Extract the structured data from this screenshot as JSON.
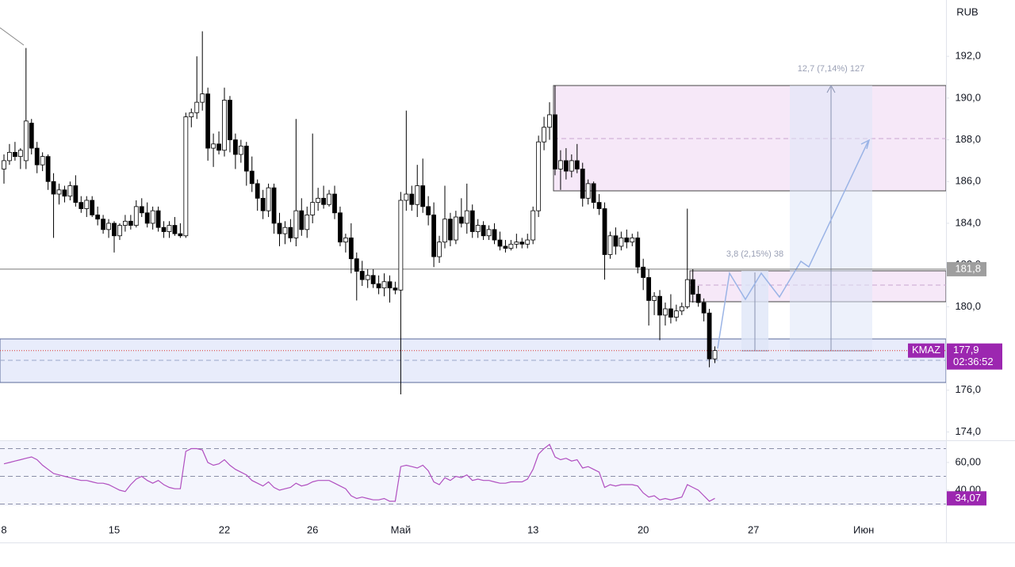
{
  "chart_data": [
    {
      "type": "candlestick",
      "ticker": "KMAZ",
      "currency": "RUB",
      "xlim": [
        -0.72,
        170.94
      ],
      "ylim": [
        173.6,
        194.7
      ],
      "yticks": [
        {
          "value": 174,
          "label": "174,0"
        },
        {
          "value": 176,
          "label": "176,0"
        },
        {
          "value": 178,
          "label": "178,0"
        },
        {
          "value": 180,
          "label": "180,0"
        },
        {
          "value": 182,
          "label": "182,0"
        },
        {
          "value": 184,
          "label": "184,0"
        },
        {
          "value": 186,
          "label": "186,0"
        },
        {
          "value": 188,
          "label": "188,0"
        },
        {
          "value": 190,
          "label": "190,0"
        },
        {
          "value": 192,
          "label": "192,0"
        }
      ],
      "xticks": [
        {
          "value": 0,
          "label": "8"
        },
        {
          "value": 20,
          "label": "15"
        },
        {
          "value": 40,
          "label": "22"
        },
        {
          "value": 56,
          "label": "26"
        },
        {
          "value": 72,
          "label": "Май"
        },
        {
          "value": 96,
          "label": "13"
        },
        {
          "value": 116,
          "label": "20"
        },
        {
          "value": 136,
          "label": "27"
        },
        {
          "value": 156,
          "label": "Июн"
        }
      ],
      "hline": {
        "value": 181.8,
        "label": "181,8"
      },
      "last_price": {
        "value": 177.9,
        "label": "177,9"
      },
      "countdown": "02:36:52",
      "measure_short": "3,8 (2,15%) 38",
      "measure_long": "12,7 (7,14%) 127",
      "up_color": "#ffffff",
      "down_color": "#000000",
      "accent_color": "#9c27b0",
      "ohlc": [
        [
          186.6,
          187.3,
          185.9,
          187.0
        ],
        [
          187.0,
          187.8,
          186.8,
          187.4
        ],
        [
          187.4,
          187.9,
          187.0,
          187.2
        ],
        [
          187.2,
          187.6,
          186.6,
          187.5
        ],
        [
          187.0,
          192.4,
          186.6,
          188.9
        ],
        [
          188.8,
          189.0,
          187.3,
          187.6
        ],
        [
          187.6,
          187.9,
          186.4,
          186.8
        ],
        [
          186.8,
          187.4,
          186.5,
          187.2
        ],
        [
          187.2,
          187.3,
          185.6,
          186.0
        ],
        [
          186.0,
          186.4,
          183.3,
          185.4
        ],
        [
          185.4,
          185.9,
          184.9,
          185.6
        ],
        [
          185.6,
          185.8,
          185.0,
          185.3
        ],
        [
          185.3,
          186.0,
          185.1,
          185.8
        ],
        [
          185.8,
          186.3,
          184.8,
          185.0
        ],
        [
          185.0,
          185.3,
          184.5,
          184.7
        ],
        [
          184.7,
          185.3,
          184.3,
          185.1
        ],
        [
          185.1,
          185.3,
          184.3,
          184.4
        ],
        [
          184.4,
          184.8,
          183.9,
          184.2
        ],
        [
          184.2,
          184.4,
          183.5,
          183.7
        ],
        [
          183.7,
          184.2,
          183.3,
          184.0
        ],
        [
          184.0,
          184.1,
          182.6,
          183.4
        ],
        [
          183.4,
          184.0,
          183.2,
          183.9
        ],
        [
          183.9,
          184.4,
          183.6,
          184.1
        ],
        [
          184.1,
          184.4,
          183.7,
          183.9
        ],
        [
          183.9,
          185.1,
          183.8,
          184.8
        ],
        [
          184.8,
          185.2,
          184.3,
          184.5
        ],
        [
          184.5,
          185.0,
          183.8,
          184.0
        ],
        [
          184.0,
          184.8,
          183.7,
          184.6
        ],
        [
          184.6,
          184.8,
          183.6,
          183.8
        ],
        [
          183.8,
          184.1,
          183.3,
          183.6
        ],
        [
          183.6,
          184.1,
          183.3,
          183.9
        ],
        [
          183.9,
          184.3,
          183.4,
          183.5
        ],
        [
          183.5,
          184.0,
          183.3,
          183.4
        ],
        [
          183.4,
          189.3,
          183.3,
          189.1
        ],
        [
          189.1,
          189.5,
          188.6,
          189.3
        ],
        [
          189.3,
          192.0,
          189.0,
          189.8
        ],
        [
          189.8,
          193.2,
          189.4,
          190.2
        ],
        [
          190.2,
          190.5,
          187.0,
          187.6
        ],
        [
          187.6,
          188.3,
          186.7,
          187.8
        ],
        [
          187.8,
          188.4,
          187.3,
          187.5
        ],
        [
          187.5,
          190.5,
          187.2,
          189.9
        ],
        [
          189.9,
          190.1,
          187.4,
          188.0
        ],
        [
          188.0,
          188.3,
          186.6,
          187.3
        ],
        [
          187.3,
          188.0,
          186.9,
          187.7
        ],
        [
          187.7,
          187.9,
          185.8,
          186.5
        ],
        [
          186.5,
          187.2,
          185.5,
          185.9
        ],
        [
          185.9,
          186.1,
          184.6,
          185.2
        ],
        [
          185.2,
          185.6,
          184.2,
          184.6
        ],
        [
          184.6,
          185.9,
          184.3,
          185.7
        ],
        [
          185.7,
          185.9,
          183.5,
          184.0
        ],
        [
          184.0,
          184.5,
          182.9,
          183.5
        ],
        [
          183.5,
          184.1,
          183.0,
          183.8
        ],
        [
          183.8,
          184.2,
          183.1,
          183.3
        ],
        [
          183.3,
          189.0,
          182.9,
          184.6
        ],
        [
          184.6,
          185.2,
          183.4,
          183.7
        ],
        [
          183.7,
          184.8,
          183.3,
          184.4
        ],
        [
          184.4,
          188.3,
          184.0,
          185.0
        ],
        [
          185.0,
          185.7,
          184.6,
          185.2
        ],
        [
          185.2,
          185.8,
          184.7,
          184.9
        ],
        [
          184.9,
          185.6,
          184.8,
          185.4
        ],
        [
          185.4,
          185.8,
          184.2,
          184.5
        ],
        [
          184.5,
          184.8,
          182.9,
          183.1
        ],
        [
          183.1,
          183.5,
          182.6,
          183.3
        ],
        [
          183.3,
          184.0,
          181.6,
          182.3
        ],
        [
          182.3,
          182.6,
          180.3,
          181.7
        ],
        [
          181.7,
          182.2,
          181.0,
          181.3
        ],
        [
          181.3,
          181.8,
          180.9,
          181.5
        ],
        [
          181.5,
          181.8,
          180.9,
          181.1
        ],
        [
          181.1,
          181.5,
          180.6,
          180.9
        ],
        [
          180.9,
          181.6,
          180.5,
          181.2
        ],
        [
          181.2,
          181.5,
          180.2,
          180.9
        ],
        [
          180.9,
          181.2,
          180.6,
          180.8
        ],
        [
          180.8,
          185.5,
          175.8,
          185.1
        ],
        [
          185.1,
          189.4,
          184.6,
          185.4
        ],
        [
          185.4,
          185.8,
          184.6,
          184.9
        ],
        [
          184.9,
          186.8,
          184.3,
          185.8
        ],
        [
          185.8,
          187.1,
          184.5,
          184.8
        ],
        [
          184.8,
          185.3,
          183.9,
          184.4
        ],
        [
          184.4,
          185.0,
          181.9,
          182.4
        ],
        [
          182.4,
          183.4,
          182.1,
          183.1
        ],
        [
          183.1,
          185.8,
          182.8,
          184.2
        ],
        [
          184.2,
          184.5,
          182.9,
          183.2
        ],
        [
          183.2,
          184.6,
          183.0,
          184.3
        ],
        [
          184.3,
          185.2,
          183.8,
          184.0
        ],
        [
          184.0,
          185.9,
          183.5,
          184.6
        ],
        [
          184.6,
          184.9,
          183.3,
          183.6
        ],
        [
          183.6,
          184.2,
          183.3,
          183.9
        ],
        [
          183.9,
          184.1,
          183.2,
          183.4
        ],
        [
          183.4,
          183.9,
          183.2,
          183.7
        ],
        [
          183.7,
          184.0,
          183.0,
          183.2
        ],
        [
          183.2,
          183.6,
          182.7,
          182.9
        ],
        [
          182.9,
          183.2,
          182.6,
          182.8
        ],
        [
          182.8,
          183.2,
          182.7,
          183.0
        ],
        [
          183.0,
          183.5,
          182.8,
          183.1
        ],
        [
          183.1,
          183.3,
          182.8,
          183.0
        ],
        [
          183.0,
          183.5,
          182.8,
          183.2
        ],
        [
          183.2,
          184.8,
          183.0,
          184.6
        ],
        [
          184.6,
          188.2,
          184.3,
          187.9
        ],
        [
          187.9,
          189.1,
          187.5,
          188.6
        ],
        [
          188.6,
          189.8,
          188.0,
          189.2
        ],
        [
          189.2,
          190.6,
          186.3,
          186.6
        ],
        [
          186.6,
          187.5,
          185.6,
          187.0
        ],
        [
          187.0,
          187.6,
          186.1,
          186.5
        ],
        [
          186.5,
          187.3,
          186.2,
          187.0
        ],
        [
          187.0,
          187.8,
          186.4,
          186.6
        ],
        [
          186.6,
          186.9,
          184.8,
          185.2
        ],
        [
          185.2,
          186.1,
          184.9,
          185.9
        ],
        [
          185.9,
          186.0,
          184.7,
          185.0
        ],
        [
          185.0,
          185.4,
          184.4,
          184.7
        ],
        [
          184.7,
          185.0,
          181.3,
          182.5
        ],
        [
          182.5,
          183.6,
          182.3,
          183.4
        ],
        [
          183.4,
          183.8,
          182.5,
          182.9
        ],
        [
          182.9,
          183.6,
          182.7,
          183.3
        ],
        [
          183.3,
          183.7,
          182.8,
          183.1
        ],
        [
          183.1,
          183.5,
          182.9,
          183.3
        ],
        [
          183.3,
          183.6,
          181.6,
          181.9
        ],
        [
          181.9,
          182.3,
          180.8,
          181.4
        ],
        [
          181.4,
          181.8,
          179.1,
          180.3
        ],
        [
          180.3,
          180.7,
          179.6,
          180.5
        ],
        [
          180.5,
          180.8,
          178.4,
          179.6
        ],
        [
          179.6,
          180.2,
          179.1,
          179.9
        ],
        [
          179.9,
          180.6,
          179.2,
          179.5
        ],
        [
          179.5,
          180.1,
          179.3,
          179.8
        ],
        [
          179.8,
          180.2,
          179.6,
          180.0
        ],
        [
          180.0,
          184.7,
          179.9,
          181.3
        ],
        [
          181.3,
          181.8,
          180.2,
          180.6
        ],
        [
          180.6,
          181.0,
          180.0,
          180.2
        ],
        [
          180.2,
          180.4,
          179.3,
          179.7
        ],
        [
          179.7,
          179.9,
          177.1,
          177.5
        ],
        [
          177.5,
          178.1,
          177.3,
          177.9
        ]
      ]
    },
    {
      "type": "line",
      "color": "#b04fc0",
      "ylim": [
        19.4,
        75.4
      ],
      "yticks": [
        {
          "value": 60,
          "label": "60,00"
        },
        {
          "value": 40,
          "label": "40,00"
        }
      ],
      "levels": [
        70,
        50,
        30
      ],
      "last": {
        "value": 34.07,
        "label": "34,07"
      },
      "values": [
        59,
        60,
        61,
        62,
        63,
        64,
        62,
        58,
        55,
        52,
        51,
        50,
        49,
        48,
        47,
        47,
        46,
        45,
        45,
        44,
        42,
        40,
        39,
        44,
        48,
        50,
        47,
        45,
        47,
        44,
        42,
        41,
        41,
        68,
        70,
        70,
        69,
        60,
        58,
        59,
        62,
        58,
        55,
        53,
        51,
        47,
        45,
        43,
        46,
        42,
        40,
        41,
        42,
        45,
        43,
        44,
        46,
        47,
        47,
        47,
        45,
        43,
        41,
        36,
        34,
        35,
        34,
        33,
        33,
        34,
        32,
        32,
        57,
        58,
        57,
        56,
        58,
        54,
        46,
        44,
        49,
        47,
        50,
        49,
        51,
        47,
        48,
        47,
        47,
        46,
        45,
        45,
        46,
        46,
        46,
        48,
        55,
        66,
        70,
        73,
        64,
        62,
        63,
        61,
        62,
        56,
        57,
        55,
        53,
        42,
        44,
        43,
        44,
        44,
        44,
        43,
        38,
        35,
        36,
        33,
        34,
        33,
        34,
        35,
        44,
        42,
        40,
        36,
        32,
        34.07
      ]
    }
  ]
}
